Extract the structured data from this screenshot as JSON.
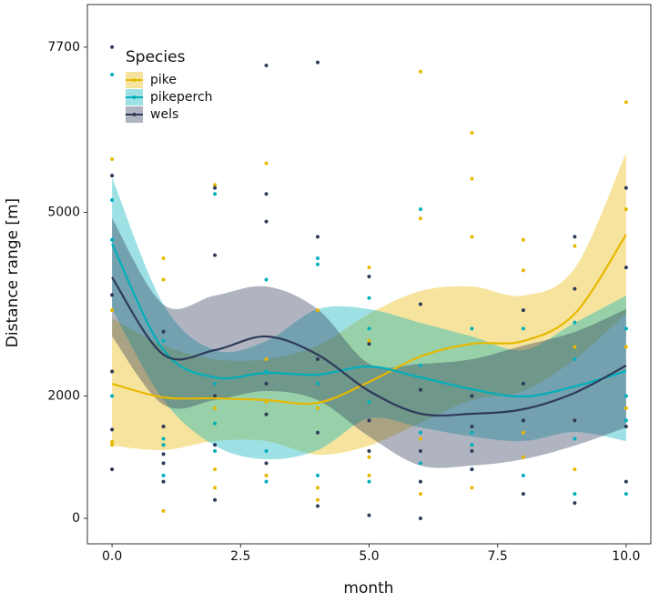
{
  "chart_data": {
    "type": "line",
    "x_label": "month",
    "y_label": "Distance range [m]",
    "legend_title": "Species",
    "legend_position": "top-left",
    "xlim": [
      -0.48,
      10.48
    ],
    "ylim": [
      -416,
      8395
    ],
    "xticks": [
      {
        "value": 0,
        "label": "0.0"
      },
      {
        "value": 2.5,
        "label": "2.5"
      },
      {
        "value": 5,
        "label": "5.0"
      },
      {
        "value": 7.5,
        "label": "7.5"
      },
      {
        "value": 10,
        "label": "10.0"
      }
    ],
    "yticks": [
      0,
      2000,
      5000,
      7700
    ],
    "x": [
      0,
      1,
      2,
      3,
      4,
      5,
      6,
      7,
      8,
      9,
      10
    ],
    "series": [
      {
        "name": "pike",
        "color": "#E7B800",
        "values": [
          2199,
          1976,
          1961,
          1932,
          1887,
          2229,
          2645,
          2853,
          2897,
          3343,
          4636
        ],
        "lower": [
          1189,
          1114,
          1263,
          1263,
          1040,
          1189,
          1560,
          1932,
          2080,
          2600,
          3343
        ],
        "upper": [
          3269,
          2823,
          2600,
          2600,
          2823,
          3343,
          3715,
          3789,
          3640,
          4086,
          5973
        ],
        "points_x": [
          0,
          0,
          0,
          0,
          0,
          1,
          1,
          1,
          1,
          2,
          2,
          2,
          2,
          3,
          3,
          3,
          3,
          4,
          4,
          4,
          4,
          5,
          5,
          5,
          5,
          6,
          6,
          6,
          6,
          7,
          7,
          7,
          7,
          8,
          8,
          8,
          8,
          9,
          9,
          9,
          9,
          10,
          10,
          10,
          10
        ],
        "points_y": [
          5870,
          2400,
          1200,
          1250,
          3400,
          4250,
          3900,
          120,
          1200,
          5450,
          1800,
          500,
          800,
          5800,
          2600,
          700,
          1900,
          3400,
          500,
          300,
          1800,
          4100,
          2900,
          700,
          1000,
          7300,
          4900,
          400,
          1300,
          6300,
          5550,
          4600,
          500,
          4550,
          4050,
          1000,
          1400,
          4450,
          2800,
          800,
          1600,
          6800,
          5050,
          2800,
          1800
        ]
      },
      {
        "name": "pikeperch",
        "color": "#00AFBB",
        "values": [
          4487,
          2749,
          2303,
          2377,
          2348,
          2481,
          2303,
          2110,
          1991,
          2155,
          2407
        ],
        "lower": [
          3418,
          1932,
          1189,
          966,
          1114,
          1634,
          1486,
          1337,
          1263,
          1412,
          1263
        ],
        "upper": [
          5572,
          3492,
          2749,
          2897,
          3418,
          3418,
          3195,
          2972,
          2749,
          3195,
          3640
        ],
        "points_x": [
          0,
          0,
          0,
          0,
          1,
          1,
          1,
          1,
          2,
          2,
          2,
          2,
          3,
          3,
          3,
          3,
          4,
          4,
          4,
          4,
          5,
          5,
          5,
          5,
          6,
          6,
          6,
          6,
          7,
          7,
          7,
          7,
          8,
          8,
          8,
          8,
          9,
          9,
          9,
          9,
          10,
          10,
          10,
          10
        ],
        "points_y": [
          7250,
          5200,
          4550,
          2000,
          2900,
          1300,
          700,
          1200,
          5300,
          1550,
          1100,
          2200,
          3900,
          1100,
          600,
          2400,
          4150,
          4250,
          2200,
          700,
          3600,
          1900,
          600,
          3100,
          5050,
          1400,
          900,
          2500,
          3100,
          1200,
          800,
          1400,
          3100,
          700,
          1600,
          2200,
          2600,
          3200,
          1300,
          400,
          3100,
          1600,
          2000,
          400
        ]
      },
      {
        "name": "wels",
        "color": "#2E3A59",
        "values": [
          3938,
          2675,
          2749,
          2972,
          2675,
          2080,
          1709,
          1709,
          1783,
          2051,
          2496
        ],
        "lower": [
          2972,
          1857,
          1932,
          2080,
          1932,
          1337,
          862,
          862,
          966,
          1189,
          1486
        ],
        "upper": [
          4903,
          3492,
          3640,
          3789,
          3418,
          2526,
          2526,
          2600,
          2823,
          3046,
          3418
        ],
        "points_x": [
          0,
          0,
          0,
          0,
          0,
          0,
          1,
          1,
          1,
          1,
          1,
          2,
          2,
          2,
          2,
          2,
          3,
          3,
          3,
          3,
          3,
          3,
          4,
          4,
          4,
          4,
          4,
          5,
          5,
          5,
          5,
          5,
          6,
          6,
          6,
          6,
          6,
          7,
          7,
          7,
          7,
          8,
          8,
          8,
          8,
          9,
          9,
          9,
          9,
          10,
          10,
          10,
          10
        ],
        "points_y": [
          7700,
          5600,
          3650,
          2400,
          800,
          1450,
          3050,
          1050,
          900,
          600,
          1500,
          5400,
          4300,
          2000,
          1200,
          300,
          7400,
          5300,
          4850,
          2200,
          900,
          1700,
          7450,
          4600,
          2600,
          200,
          1400,
          3950,
          2850,
          1600,
          50,
          1100,
          3500,
          2100,
          600,
          0,
          1100,
          2000,
          1100,
          800,
          1500,
          3400,
          2200,
          400,
          1600,
          4600,
          3750,
          1600,
          250,
          5400,
          4100,
          600,
          1500
        ]
      }
    ]
  }
}
